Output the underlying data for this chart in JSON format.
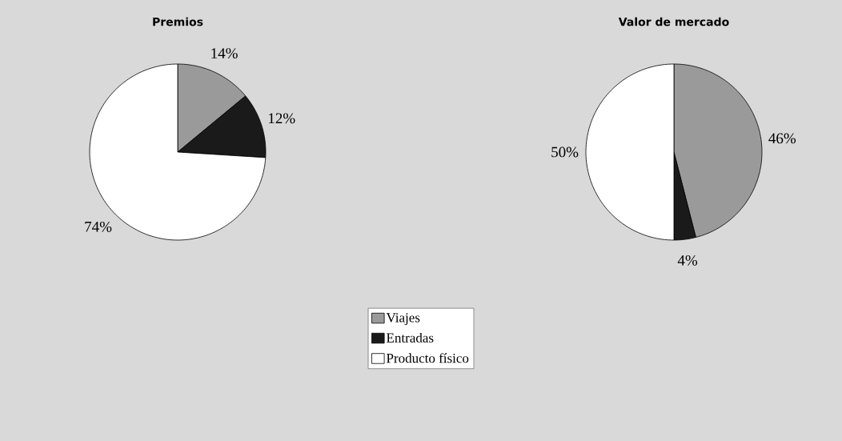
{
  "chart_data": [
    {
      "type": "pie",
      "title": "Premios",
      "categories": [
        "Viajes",
        "Entradas",
        "Producto físico"
      ],
      "values": [
        14,
        12,
        74
      ],
      "value_labels": [
        "14%",
        "12%",
        "74%"
      ],
      "colors": [
        "#9a9a9a",
        "#1a1a1a",
        "#ffffff"
      ],
      "legend": "bottom"
    },
    {
      "type": "pie",
      "title": "Valor de mercado",
      "values": [
        46,
        4,
        50
      ],
      "value_labels": [
        "46%",
        "4%",
        "50%"
      ],
      "colors": [
        "#9a9a9a",
        "#1a1a1a",
        "#ffffff"
      ]
    }
  ]
}
